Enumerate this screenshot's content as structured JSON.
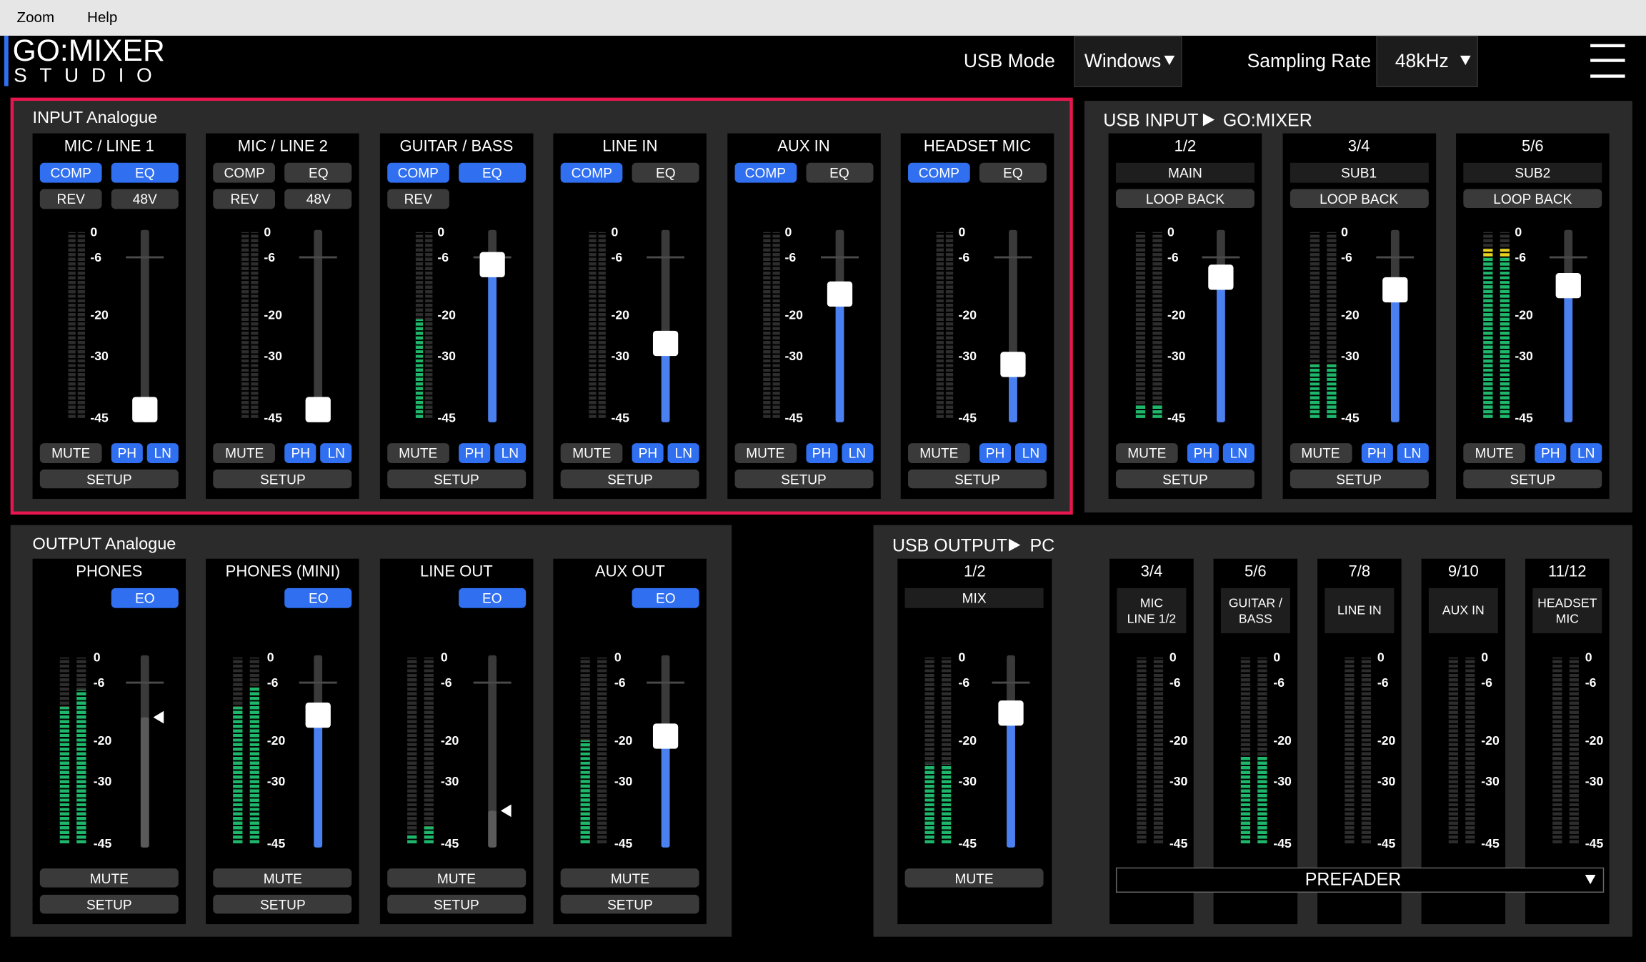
{
  "menu": [
    "Zoom",
    "Help"
  ],
  "header": {
    "logo_top": "GO:MIXER",
    "logo_bottom": "STUDIO",
    "usb_mode_label": "USB Mode",
    "usb_mode_value": "Windows",
    "sampling_rate_label": "Sampling Rate",
    "sampling_rate_value": "48kHz"
  },
  "meter_scale": [
    0,
    -6,
    -20,
    -30,
    -45
  ],
  "labels": {
    "mute": "MUTE",
    "ph": "PH",
    "ln": "LN",
    "setup": "SETUP"
  },
  "input_analogue": {
    "title": "INPUT Analogue",
    "strips": [
      {
        "name": "MIC / LINE 1",
        "buttons": [
          [
            {
              "label": "COMP",
              "on": true
            },
            {
              "label": "EQ",
              "on": true
            }
          ],
          [
            {
              "label": "REV",
              "on": false
            },
            {
              "label": "48V",
              "on": false
            }
          ]
        ],
        "meter": [
          -45,
          -45
        ],
        "fader": {
          "value": -43,
          "style": "handle",
          "fill": null
        }
      },
      {
        "name": "MIC / LINE 2",
        "buttons": [
          [
            {
              "label": "COMP",
              "on": false
            },
            {
              "label": "EQ",
              "on": false
            }
          ],
          [
            {
              "label": "REV",
              "on": false
            },
            {
              "label": "48V",
              "on": false
            }
          ]
        ],
        "meter": [
          -45,
          -45
        ],
        "fader": {
          "value": -43,
          "style": "handle",
          "fill": null
        }
      },
      {
        "name": "GUITAR / BASS",
        "buttons": [
          [
            {
              "label": "COMP",
              "on": true
            },
            {
              "label": "EQ",
              "on": true
            }
          ],
          [
            {
              "label": "REV",
              "on": false
            }
          ]
        ],
        "meter": [
          -21,
          -45
        ],
        "fader": {
          "value": -8,
          "style": "handle",
          "fill": "#4a80f0"
        }
      },
      {
        "name": "LINE IN",
        "buttons": [
          [
            {
              "label": "COMP",
              "on": true
            },
            {
              "label": "EQ",
              "on": false
            }
          ]
        ],
        "meter": [
          -45,
          -45
        ],
        "fader": {
          "value": -27,
          "style": "handle",
          "fill": "#4a80f0"
        }
      },
      {
        "name": "AUX IN",
        "buttons": [
          [
            {
              "label": "COMP",
              "on": true
            },
            {
              "label": "EQ",
              "on": false
            }
          ]
        ],
        "meter": [
          -45,
          -45
        ],
        "fader": {
          "value": -15,
          "style": "handle",
          "fill": "#4a80f0"
        }
      },
      {
        "name": "HEADSET MIC",
        "buttons": [
          [
            {
              "label": "COMP",
              "on": true
            },
            {
              "label": "EQ",
              "on": false
            }
          ]
        ],
        "meter": [
          -45,
          -45
        ],
        "fader": {
          "value": -32,
          "style": "handle",
          "fill": "#4a80f0"
        }
      }
    ]
  },
  "usb_input": {
    "title": "USB INPUT",
    "target": "GO:MIXER",
    "strips": [
      {
        "name": "1/2",
        "route": "MAIN",
        "button": "LOOP BACK",
        "meter": [
          -42,
          -42
        ],
        "fader": {
          "value": -11,
          "style": "handle",
          "fill": "#4a80f0"
        }
      },
      {
        "name": "3/4",
        "route": "SUB1",
        "button": "LOOP BACK",
        "meter": [
          -32,
          -32
        ],
        "fader": {
          "value": -14,
          "style": "handle",
          "fill": "#4a80f0"
        }
      },
      {
        "name": "5/6",
        "route": "SUB2",
        "button": "LOOP BACK",
        "meter": [
          -4,
          -4
        ],
        "fader": {
          "value": -13,
          "style": "handle",
          "fill": "#4a80f0"
        }
      }
    ]
  },
  "output_analogue": {
    "title": "OUTPUT Analogue",
    "strips": [
      {
        "name": "PHONES",
        "eq": "EO",
        "meter": [
          -12,
          -8
        ],
        "fader": {
          "value": -14.5,
          "style": "arrow",
          "fill": "#5a5a5a"
        }
      },
      {
        "name": "PHONES (MINI)",
        "eq": "EO",
        "meter": [
          -12,
          -7
        ],
        "fader": {
          "value": -14,
          "style": "handle",
          "fill": "#4a80f0"
        }
      },
      {
        "name": "LINE OUT",
        "eq": "EO",
        "meter": [
          -43,
          -41
        ],
        "fader": {
          "value": -37,
          "style": "arrow",
          "fill": "#5a5a5a"
        }
      },
      {
        "name": "AUX OUT",
        "eq": "EO",
        "meter": [
          -20,
          -45
        ],
        "fader": {
          "value": -19,
          "style": "handle",
          "fill": "#4a80f0"
        }
      }
    ]
  },
  "usb_output": {
    "title": "USB OUTPUT",
    "target": "PC",
    "main": {
      "name": "1/2",
      "route": "MIX",
      "meter": [
        -26,
        -26
      ],
      "fader": {
        "value": -13.5,
        "style": "handle",
        "fill": "#4a80f0"
      }
    },
    "groups": [
      {
        "name": "3/4",
        "source": [
          "MIC",
          "LINE 1/2"
        ],
        "meter": [
          -45,
          -45
        ]
      },
      {
        "name": "5/6",
        "source": [
          "GUITAR /",
          "BASS"
        ],
        "meter": [
          -24,
          -24
        ]
      },
      {
        "name": "7/8",
        "source": [
          "LINE IN"
        ],
        "meter": [
          -45,
          -45
        ]
      },
      {
        "name": "9/10",
        "source": [
          "AUX IN"
        ],
        "meter": [
          -45,
          -45
        ]
      },
      {
        "name": "11/12",
        "source": [
          "HEADSET",
          "MIC"
        ],
        "meter": [
          -45,
          -45
        ]
      }
    ],
    "prefader": "PREFADER"
  }
}
